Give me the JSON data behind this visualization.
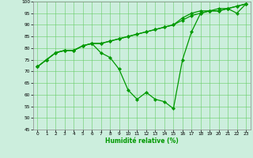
{
  "title": "",
  "xlabel": "Humidité relative (%)",
  "ylabel": "",
  "bg_color": "#cceedd",
  "grid_color": "#66cc66",
  "line_color": "#009900",
  "xlim": [
    -0.5,
    23.5
  ],
  "ylim": [
    45,
    100
  ],
  "yticks": [
    45,
    50,
    55,
    60,
    65,
    70,
    75,
    80,
    85,
    90,
    95,
    100
  ],
  "xticks": [
    0,
    1,
    2,
    3,
    4,
    5,
    6,
    7,
    8,
    9,
    10,
    11,
    12,
    13,
    14,
    15,
    16,
    17,
    18,
    19,
    20,
    21,
    22,
    23
  ],
  "series": [
    {
      "x": [
        0,
        1,
        2,
        3,
        4,
        5,
        6,
        7,
        8,
        9,
        10,
        11,
        12,
        13,
        14,
        15,
        16,
        17,
        18,
        19,
        20,
        21,
        22,
        23
      ],
      "y": [
        72,
        75,
        78,
        79,
        79,
        81,
        82,
        82,
        83,
        84,
        85,
        86,
        87,
        88,
        89,
        90,
        93,
        95,
        96,
        96,
        97,
        97,
        98,
        99
      ]
    },
    {
      "x": [
        0,
        1,
        2,
        3,
        4,
        5,
        6,
        7,
        8,
        9,
        10,
        11,
        12,
        13,
        14,
        15,
        16,
        17,
        18,
        19,
        20,
        21,
        22,
        23
      ],
      "y": [
        72,
        75,
        78,
        79,
        79,
        81,
        82,
        82,
        83,
        84,
        85,
        86,
        87,
        88,
        89,
        90,
        92,
        94,
        95,
        96,
        96,
        97,
        98,
        99
      ]
    },
    {
      "x": [
        0,
        1,
        2,
        3,
        4,
        5,
        6,
        7,
        8,
        9,
        10,
        11,
        12,
        13,
        14,
        15,
        16,
        17,
        18,
        19,
        20,
        21,
        22,
        23
      ],
      "y": [
        72,
        75,
        78,
        79,
        79,
        81,
        82,
        78,
        76,
        71,
        62,
        58,
        61,
        58,
        57,
        54,
        75,
        87,
        95,
        96,
        96,
        97,
        95,
        99
      ]
    }
  ]
}
